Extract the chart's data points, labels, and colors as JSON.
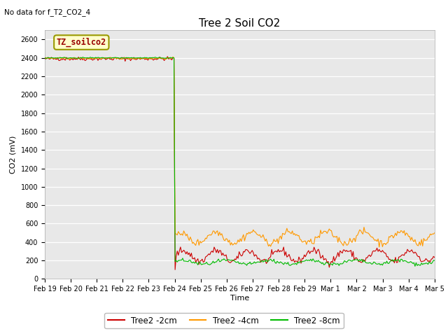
{
  "title": "Tree 2 Soil CO2",
  "no_data_text": "No data for f_T2_CO2_4",
  "ylabel": "CO2 (mV)",
  "xlabel": "Time",
  "ylim": [
    0,
    2700
  ],
  "yticks": [
    0,
    200,
    400,
    600,
    800,
    1000,
    1200,
    1400,
    1600,
    1800,
    2000,
    2200,
    2400,
    2600
  ],
  "xtick_labels": [
    "Feb 19",
    "Feb 20",
    "Feb 21",
    "Feb 22",
    "Feb 23",
    "Feb 24",
    "Feb 25",
    "Feb 26",
    "Feb 27",
    "Feb 28",
    "Feb 29",
    "Mar 1",
    "Mar 2",
    "Mar 3",
    "Mar 4",
    "Mar 5"
  ],
  "bg_color": "#ffffff",
  "plot_bg_color": "#e8e8e8",
  "legend_label": "TZ_soilco2",
  "legend_bg": "#ffffcc",
  "legend_edge": "#999900",
  "legend_text_color": "#990000",
  "series": {
    "red": {
      "label": "Tree2 -2cm",
      "color": "#cc0000"
    },
    "orange": {
      "label": "Tree2 -4cm",
      "color": "#ff9900"
    },
    "green": {
      "label": "Tree2 -8cm",
      "color": "#00bb00"
    }
  },
  "title_fontsize": 11,
  "axis_fontsize": 8,
  "tick_fontsize": 7,
  "n_points": 360,
  "breakpoint": 120,
  "red_before": 2390,
  "red_after_mean": 250,
  "red_after_amp": 60,
  "red_after_freq": 8,
  "red_after_noise": 20,
  "orange_before": 2395,
  "orange_after_mean": 450,
  "orange_after_amp": 60,
  "orange_after_freq": 7,
  "orange_after_phase": 1,
  "orange_after_noise": 20,
  "green_before": 2400,
  "green_after_mean": 180,
  "green_after_amp": 20,
  "green_after_freq": 6,
  "green_after_phase": 0.5,
  "green_after_noise": 10,
  "random_seed": 42
}
